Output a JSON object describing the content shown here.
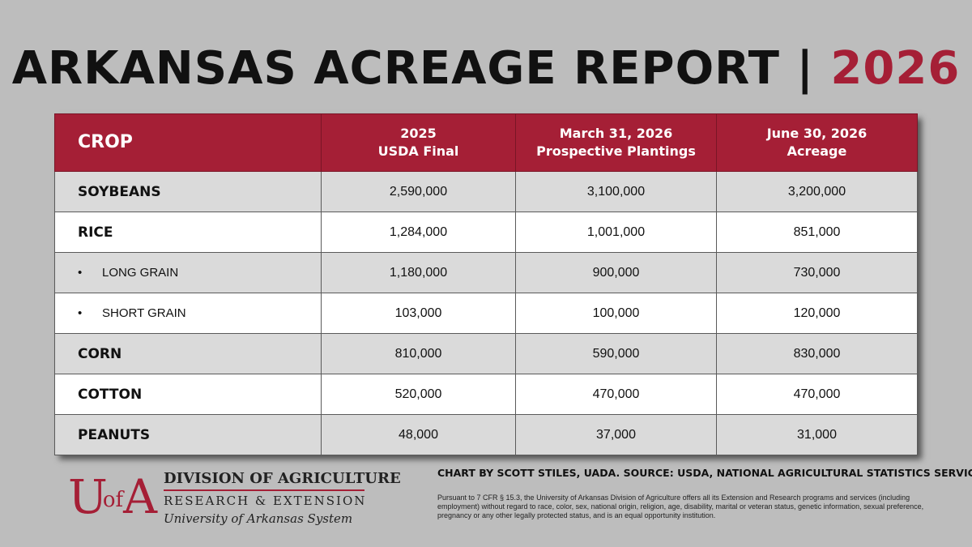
{
  "title": {
    "main": "ARKANSAS ACREAGE REPORT | ",
    "year": "2026"
  },
  "colors": {
    "accent": "#a51f36",
    "background": "#bdbdbd",
    "row_shaded": "#dadada",
    "row_plain": "#ffffff"
  },
  "chart_data": {
    "type": "table",
    "columns": [
      {
        "line1": "CROP",
        "line2": ""
      },
      {
        "line1": "2025",
        "line2": "USDA Final"
      },
      {
        "line1": "March 31, 2026",
        "line2": "Prospective Plantings"
      },
      {
        "line1": "June 30, 2026",
        "line2": "Acreage"
      }
    ],
    "rows": [
      {
        "crop": "SOYBEANS",
        "sub": false,
        "values": [
          "2,590,000",
          "3,100,000",
          "3,200,000"
        ]
      },
      {
        "crop": "RICE",
        "sub": false,
        "values": [
          "1,284,000",
          "1,001,000",
          "851,000"
        ]
      },
      {
        "crop": "LONG GRAIN",
        "sub": true,
        "values": [
          "1,180,000",
          "900,000",
          "730,000"
        ]
      },
      {
        "crop": "SHORT GRAIN",
        "sub": true,
        "values": [
          "103,000",
          "100,000",
          "120,000"
        ]
      },
      {
        "crop": "CORN",
        "sub": false,
        "values": [
          "810,000",
          "590,000",
          "830,000"
        ]
      },
      {
        "crop": "COTTON",
        "sub": false,
        "values": [
          "520,000",
          "470,000",
          "470,000"
        ]
      },
      {
        "crop": "PEANUTS",
        "sub": false,
        "values": [
          "48,000",
          "37,000",
          "31,000"
        ]
      }
    ]
  },
  "bullet": "•",
  "logo": {
    "mark_u": "U",
    "mark_of": "of",
    "mark_a": "A",
    "line1": "DIVISION OF AGRICULTURE",
    "line2": "RESEARCH & EXTENSION",
    "line3": "University of Arkansas System"
  },
  "credit": "CHART BY SCOTT STILES, UADA.  SOURCE: USDA, NATIONAL AGRICULTURAL STATISTICS SERVICE.",
  "disclaimer": "Pursuant to 7 CFR § 15.3, the University of Arkansas Division of Agriculture offers all its Extension and Research programs and services (including employment) without regard to race, color, sex, national origin, religion, age, disability, marital or veteran status, genetic information, sexual preference, pregnancy or any other legally protected status, and is an equal opportunity institution."
}
